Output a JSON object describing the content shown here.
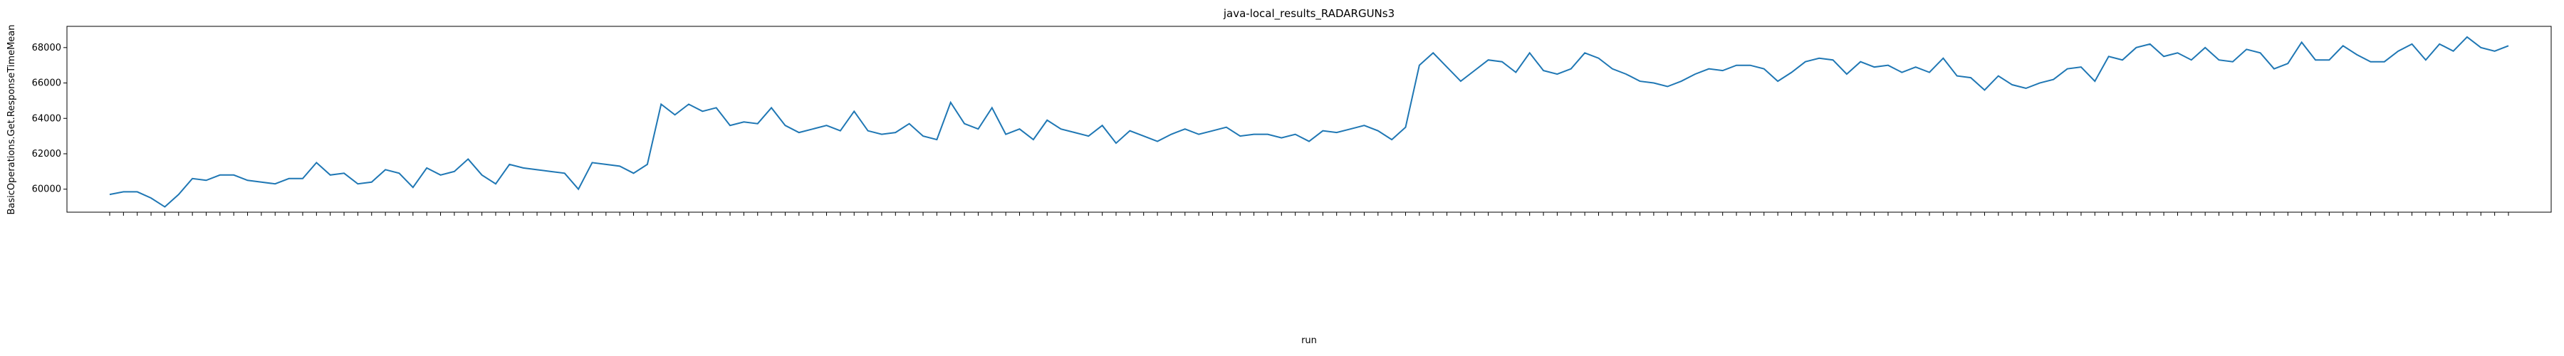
{
  "chart_data": {
    "type": "line",
    "title": "java-local_results_RADARGUNs3",
    "x_label": "run",
    "y_label": "BasicOperations.Get.ResponseTimeMean",
    "categories": [
      null,
      null,
      null,
      null,
      null,
      null,
      null,
      null,
      null,
      null,
      null,
      null,
      null,
      null,
      null,
      null,
      null,
      null,
      null,
      null,
      null,
      null,
      null,
      null,
      null,
      null,
      null,
      null,
      null,
      null,
      null,
      null,
      null,
      null,
      null,
      null,
      null,
      null,
      null,
      null,
      null,
      null,
      null,
      null,
      null,
      null,
      null,
      null,
      null,
      null,
      null,
      null,
      null,
      null,
      null,
      null,
      null,
      null,
      null,
      null,
      null,
      null,
      null,
      null,
      null,
      null,
      null,
      null,
      null,
      null,
      null,
      null,
      null,
      null,
      null,
      null,
      null,
      null,
      null,
      null,
      null,
      null,
      null,
      null,
      null,
      null,
      null,
      null,
      null,
      null,
      null,
      null,
      null,
      null,
      null,
      null,
      null,
      null,
      null,
      null,
      null,
      null,
      null,
      null,
      null,
      null,
      null,
      null,
      null,
      null,
      null,
      null,
      null,
      null,
      null,
      null,
      null,
      null,
      null,
      null,
      null,
      null,
      null,
      null,
      null,
      null,
      null,
      null,
      null,
      null,
      null,
      null,
      null,
      null,
      null,
      null,
      null,
      null,
      null,
      null,
      null,
      null,
      null,
      null,
      null,
      null,
      null,
      null,
      null,
      null,
      null,
      null,
      null,
      null,
      null,
      null,
      null,
      null,
      null,
      null,
      null,
      null,
      null,
      null,
      null,
      null,
      null,
      null,
      null,
      null,
      null,
      null,
      null,
      null,
      null
    ],
    "series": [
      {
        "color": "#1f77b4",
        "values": [
          59700,
          59850,
          59850,
          59500,
          59000,
          59700,
          60600,
          60500,
          60800,
          60800,
          60500,
          60400,
          60300,
          60600,
          60600,
          61500,
          60800,
          60900,
          60300,
          60400,
          61100,
          60900,
          60100,
          61200,
          60800,
          61000,
          61700,
          60800,
          60300,
          61400,
          61200,
          61100,
          61000,
          60900,
          60000,
          61500,
          61400,
          61300,
          60900,
          61400,
          64800,
          64200,
          64800,
          64400,
          64600,
          63600,
          63800,
          63700,
          64600,
          63600,
          63200,
          63400,
          63600,
          63300,
          64400,
          63300,
          63100,
          63200,
          63700,
          63000,
          62800,
          64900,
          63700,
          63400,
          64600,
          63100,
          63400,
          62800,
          63900,
          63400,
          63200,
          63000,
          63600,
          62600,
          63300,
          63000,
          62700,
          63100,
          63400,
          63100,
          63300,
          63500,
          63000,
          63100,
          63100,
          62900,
          63100,
          62700,
          63300,
          63200,
          63400,
          63600,
          63300,
          62800,
          63500,
          67000,
          67700,
          66900,
          66100,
          66700,
          67300,
          67200,
          66600,
          67700,
          66700,
          66500,
          66800,
          67700,
          67400,
          66800,
          66500,
          66100,
          66000,
          65800,
          66100,
          66500,
          66800,
          66700,
          67000,
          67000,
          66800,
          66100,
          66600,
          67200,
          67400,
          67300,
          66500,
          67200,
          66900,
          67000,
          66600,
          66900,
          66600,
          67400,
          66400,
          66300,
          65600,
          66400,
          65900,
          65700,
          66000,
          66200,
          66800,
          66900,
          66100,
          67500,
          67300,
          68000,
          68200,
          67500,
          67700,
          67300,
          68000,
          67300,
          67200,
          67900,
          67700,
          66800,
          67100,
          68300,
          67300,
          67300,
          68100,
          67600,
          67200,
          67200,
          67800,
          68200,
          67300,
          68200,
          67800,
          68600,
          68000,
          67800,
          68100
        ]
      }
    ],
    "ylim": [
      58700,
      69200
    ],
    "yticks": [
      60000,
      62000,
      64000,
      66000,
      68000
    ],
    "grid": false
  }
}
